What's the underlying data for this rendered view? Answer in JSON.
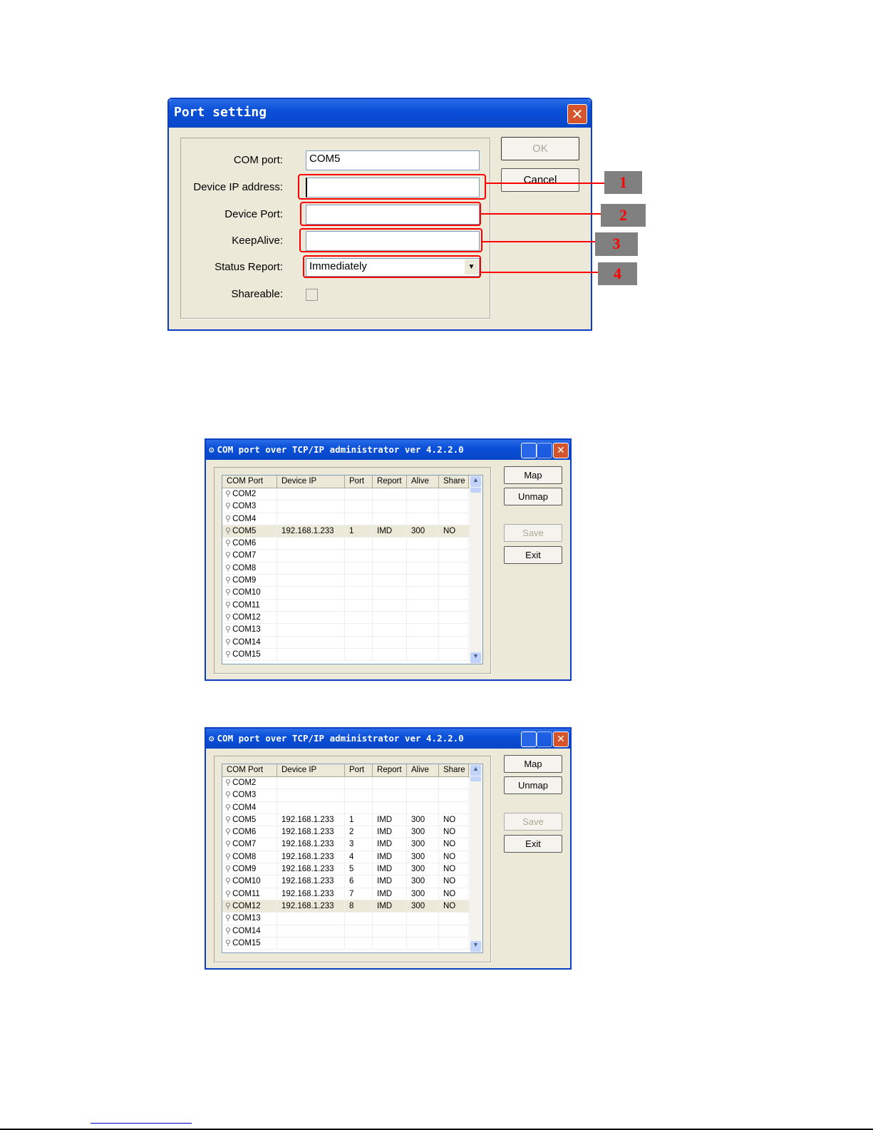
{
  "port_setting": {
    "title": "Port setting",
    "labels": {
      "com_port": "COM port:",
      "ip": "Device IP address:",
      "port": "Device Port:",
      "keepalive": "KeepAlive:",
      "status": "Status Report:",
      "shareable": "Shareable:"
    },
    "values": {
      "com_port": "COM5",
      "ip": "",
      "port": "",
      "keepalive": "",
      "status": "Immediately",
      "shareable": false
    },
    "ok": "OK",
    "cancel": "Cancel",
    "callouts": [
      "1",
      "2",
      "3",
      "4"
    ]
  },
  "admin_windows": [
    {
      "title": "COM port over TCP/IP administrator ver 4.2.2.0",
      "columns": [
        "COM Port",
        "Device IP",
        "Port",
        "Report",
        "Alive",
        "Share"
      ],
      "rows": [
        [
          "COM2",
          "",
          "",
          "",
          "",
          ""
        ],
        [
          "COM3",
          "",
          "",
          "",
          "",
          ""
        ],
        [
          "COM4",
          "",
          "",
          "",
          "",
          ""
        ],
        [
          "COM5",
          "192.168.1.233",
          "1",
          "IMD",
          "300",
          "NO"
        ],
        [
          "COM6",
          "",
          "",
          "",
          "",
          ""
        ],
        [
          "COM7",
          "",
          "",
          "",
          "",
          ""
        ],
        [
          "COM8",
          "",
          "",
          "",
          "",
          ""
        ],
        [
          "COM9",
          "",
          "",
          "",
          "",
          ""
        ],
        [
          "COM10",
          "",
          "",
          "",
          "",
          ""
        ],
        [
          "COM11",
          "",
          "",
          "",
          "",
          ""
        ],
        [
          "COM12",
          "",
          "",
          "",
          "",
          ""
        ],
        [
          "COM13",
          "",
          "",
          "",
          "",
          ""
        ],
        [
          "COM14",
          "",
          "",
          "",
          "",
          ""
        ],
        [
          "COM15",
          "",
          "",
          "",
          "",
          ""
        ]
      ],
      "selected_row": "COM5",
      "buttons": {
        "map": "Map",
        "unmap": "Unmap",
        "save": "Save",
        "exit": "Exit"
      }
    },
    {
      "title": "COM port over TCP/IP administrator ver 4.2.2.0",
      "columns": [
        "COM Port",
        "Device IP",
        "Port",
        "Report",
        "Alive",
        "Share"
      ],
      "rows": [
        [
          "COM2",
          "",
          "",
          "",
          "",
          ""
        ],
        [
          "COM3",
          "",
          "",
          "",
          "",
          ""
        ],
        [
          "COM4",
          "",
          "",
          "",
          "",
          ""
        ],
        [
          "COM5",
          "192.168.1.233",
          "1",
          "IMD",
          "300",
          "NO"
        ],
        [
          "COM6",
          "192.168.1.233",
          "2",
          "IMD",
          "300",
          "NO"
        ],
        [
          "COM7",
          "192.168.1.233",
          "3",
          "IMD",
          "300",
          "NO"
        ],
        [
          "COM8",
          "192.168.1.233",
          "4",
          "IMD",
          "300",
          "NO"
        ],
        [
          "COM9",
          "192.168.1.233",
          "5",
          "IMD",
          "300",
          "NO"
        ],
        [
          "COM10",
          "192.168.1.233",
          "6",
          "IMD",
          "300",
          "NO"
        ],
        [
          "COM11",
          "192.168.1.233",
          "7",
          "IMD",
          "300",
          "NO"
        ],
        [
          "COM12",
          "192.168.1.233",
          "8",
          "IMD",
          "300",
          "NO"
        ],
        [
          "COM13",
          "",
          "",
          "",
          "",
          ""
        ],
        [
          "COM14",
          "",
          "",
          "",
          "",
          ""
        ],
        [
          "COM15",
          "",
          "",
          "",
          "",
          ""
        ]
      ],
      "selected_row": "COM12",
      "buttons": {
        "map": "Map",
        "unmap": "Unmap",
        "save": "Save",
        "exit": "Exit"
      }
    }
  ]
}
